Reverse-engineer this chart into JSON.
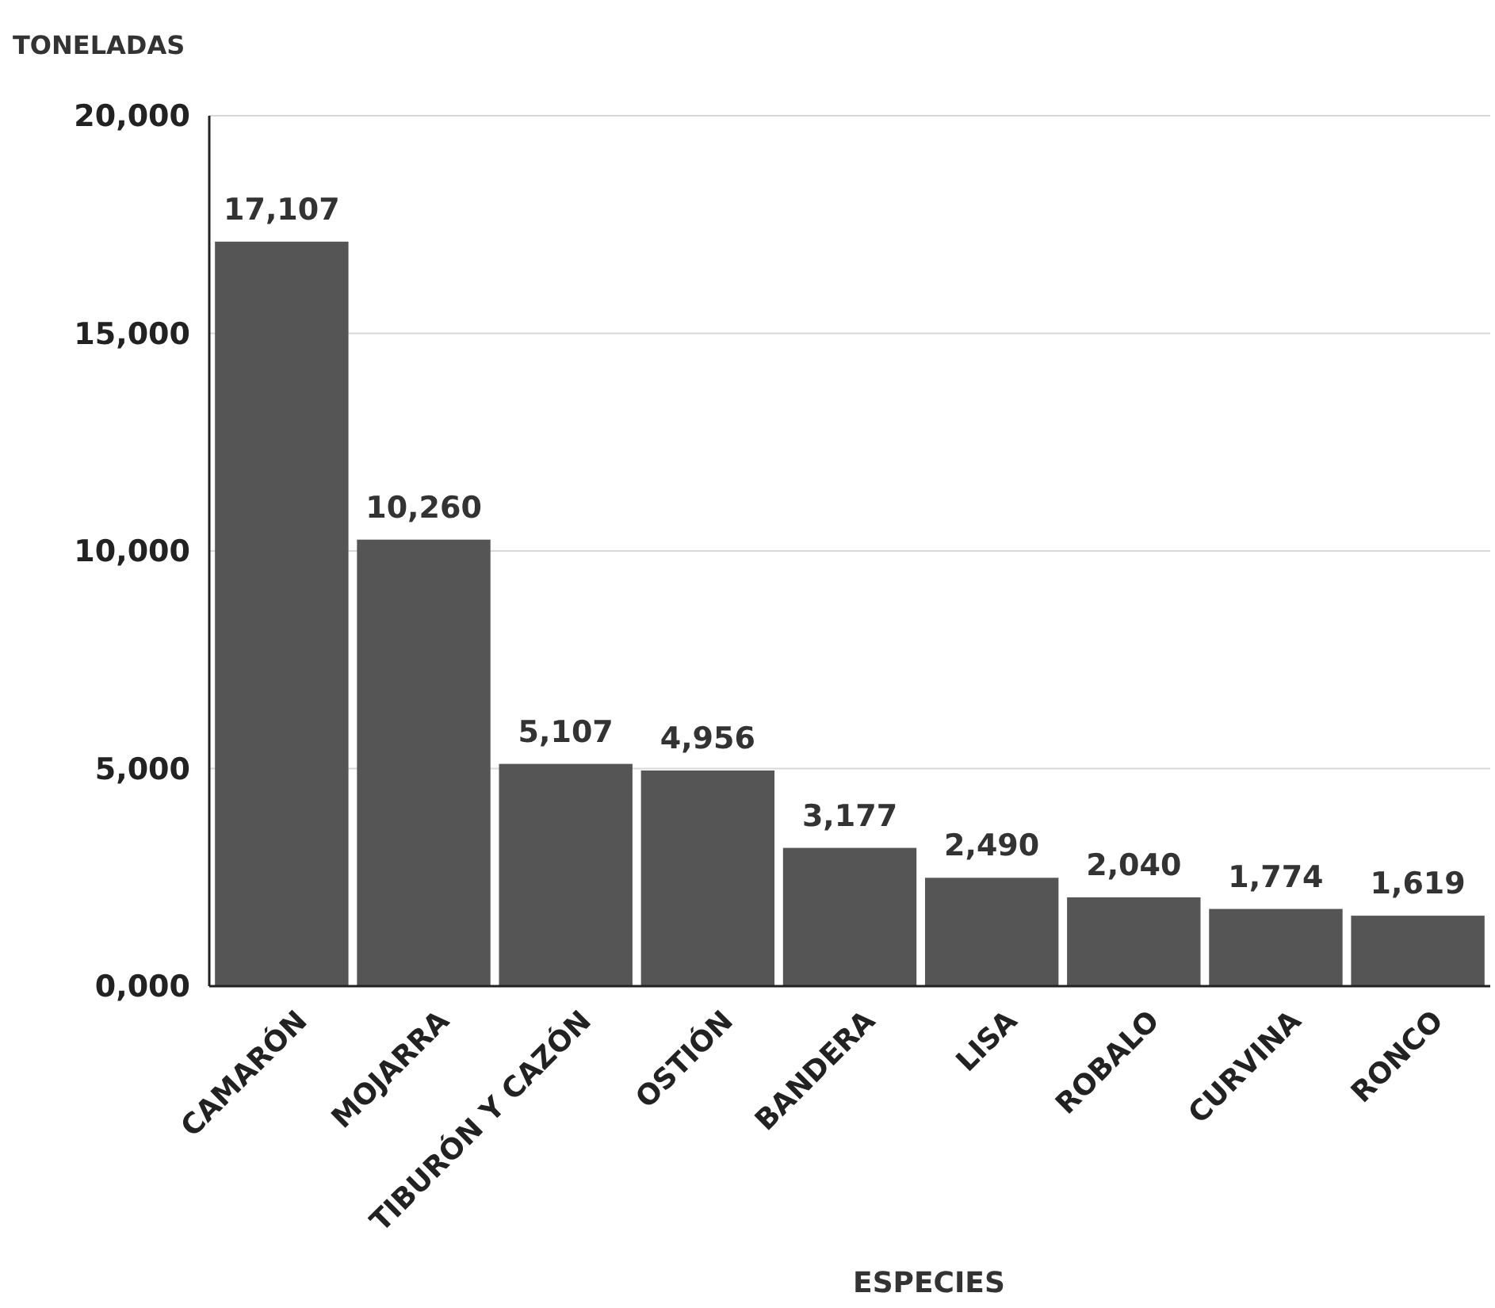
{
  "chart_data": {
    "type": "bar",
    "xlabel": "ESPECIES",
    "ylabel": "TONELADAS",
    "categories": [
      "CAMARÓN",
      "MOJARRA",
      "TIBURÓN Y CAZÓN",
      "OSTIÓN",
      "BANDERA",
      "LISA",
      "ROBALO",
      "CURVINA",
      "RONCO"
    ],
    "values": [
      17107,
      10260,
      5107,
      4956,
      3177,
      2490,
      2040,
      1774,
      1619
    ],
    "value_labels": [
      "17,107",
      "10,260",
      "5,107",
      "4,956",
      "3,177",
      "2,490",
      "2,040",
      "1,774",
      "1,619"
    ],
    "color": "#555555",
    "ylim": [
      0,
      20000
    ],
    "yticks": [
      {
        "value": 0,
        "label": "0,000"
      },
      {
        "value": 5000,
        "label": "5,000"
      },
      {
        "value": 10000,
        "label": "10,000"
      },
      {
        "value": 15000,
        "label": "15,000"
      },
      {
        "value": 20000,
        "label": "20,000"
      }
    ],
    "grid": "y"
  }
}
